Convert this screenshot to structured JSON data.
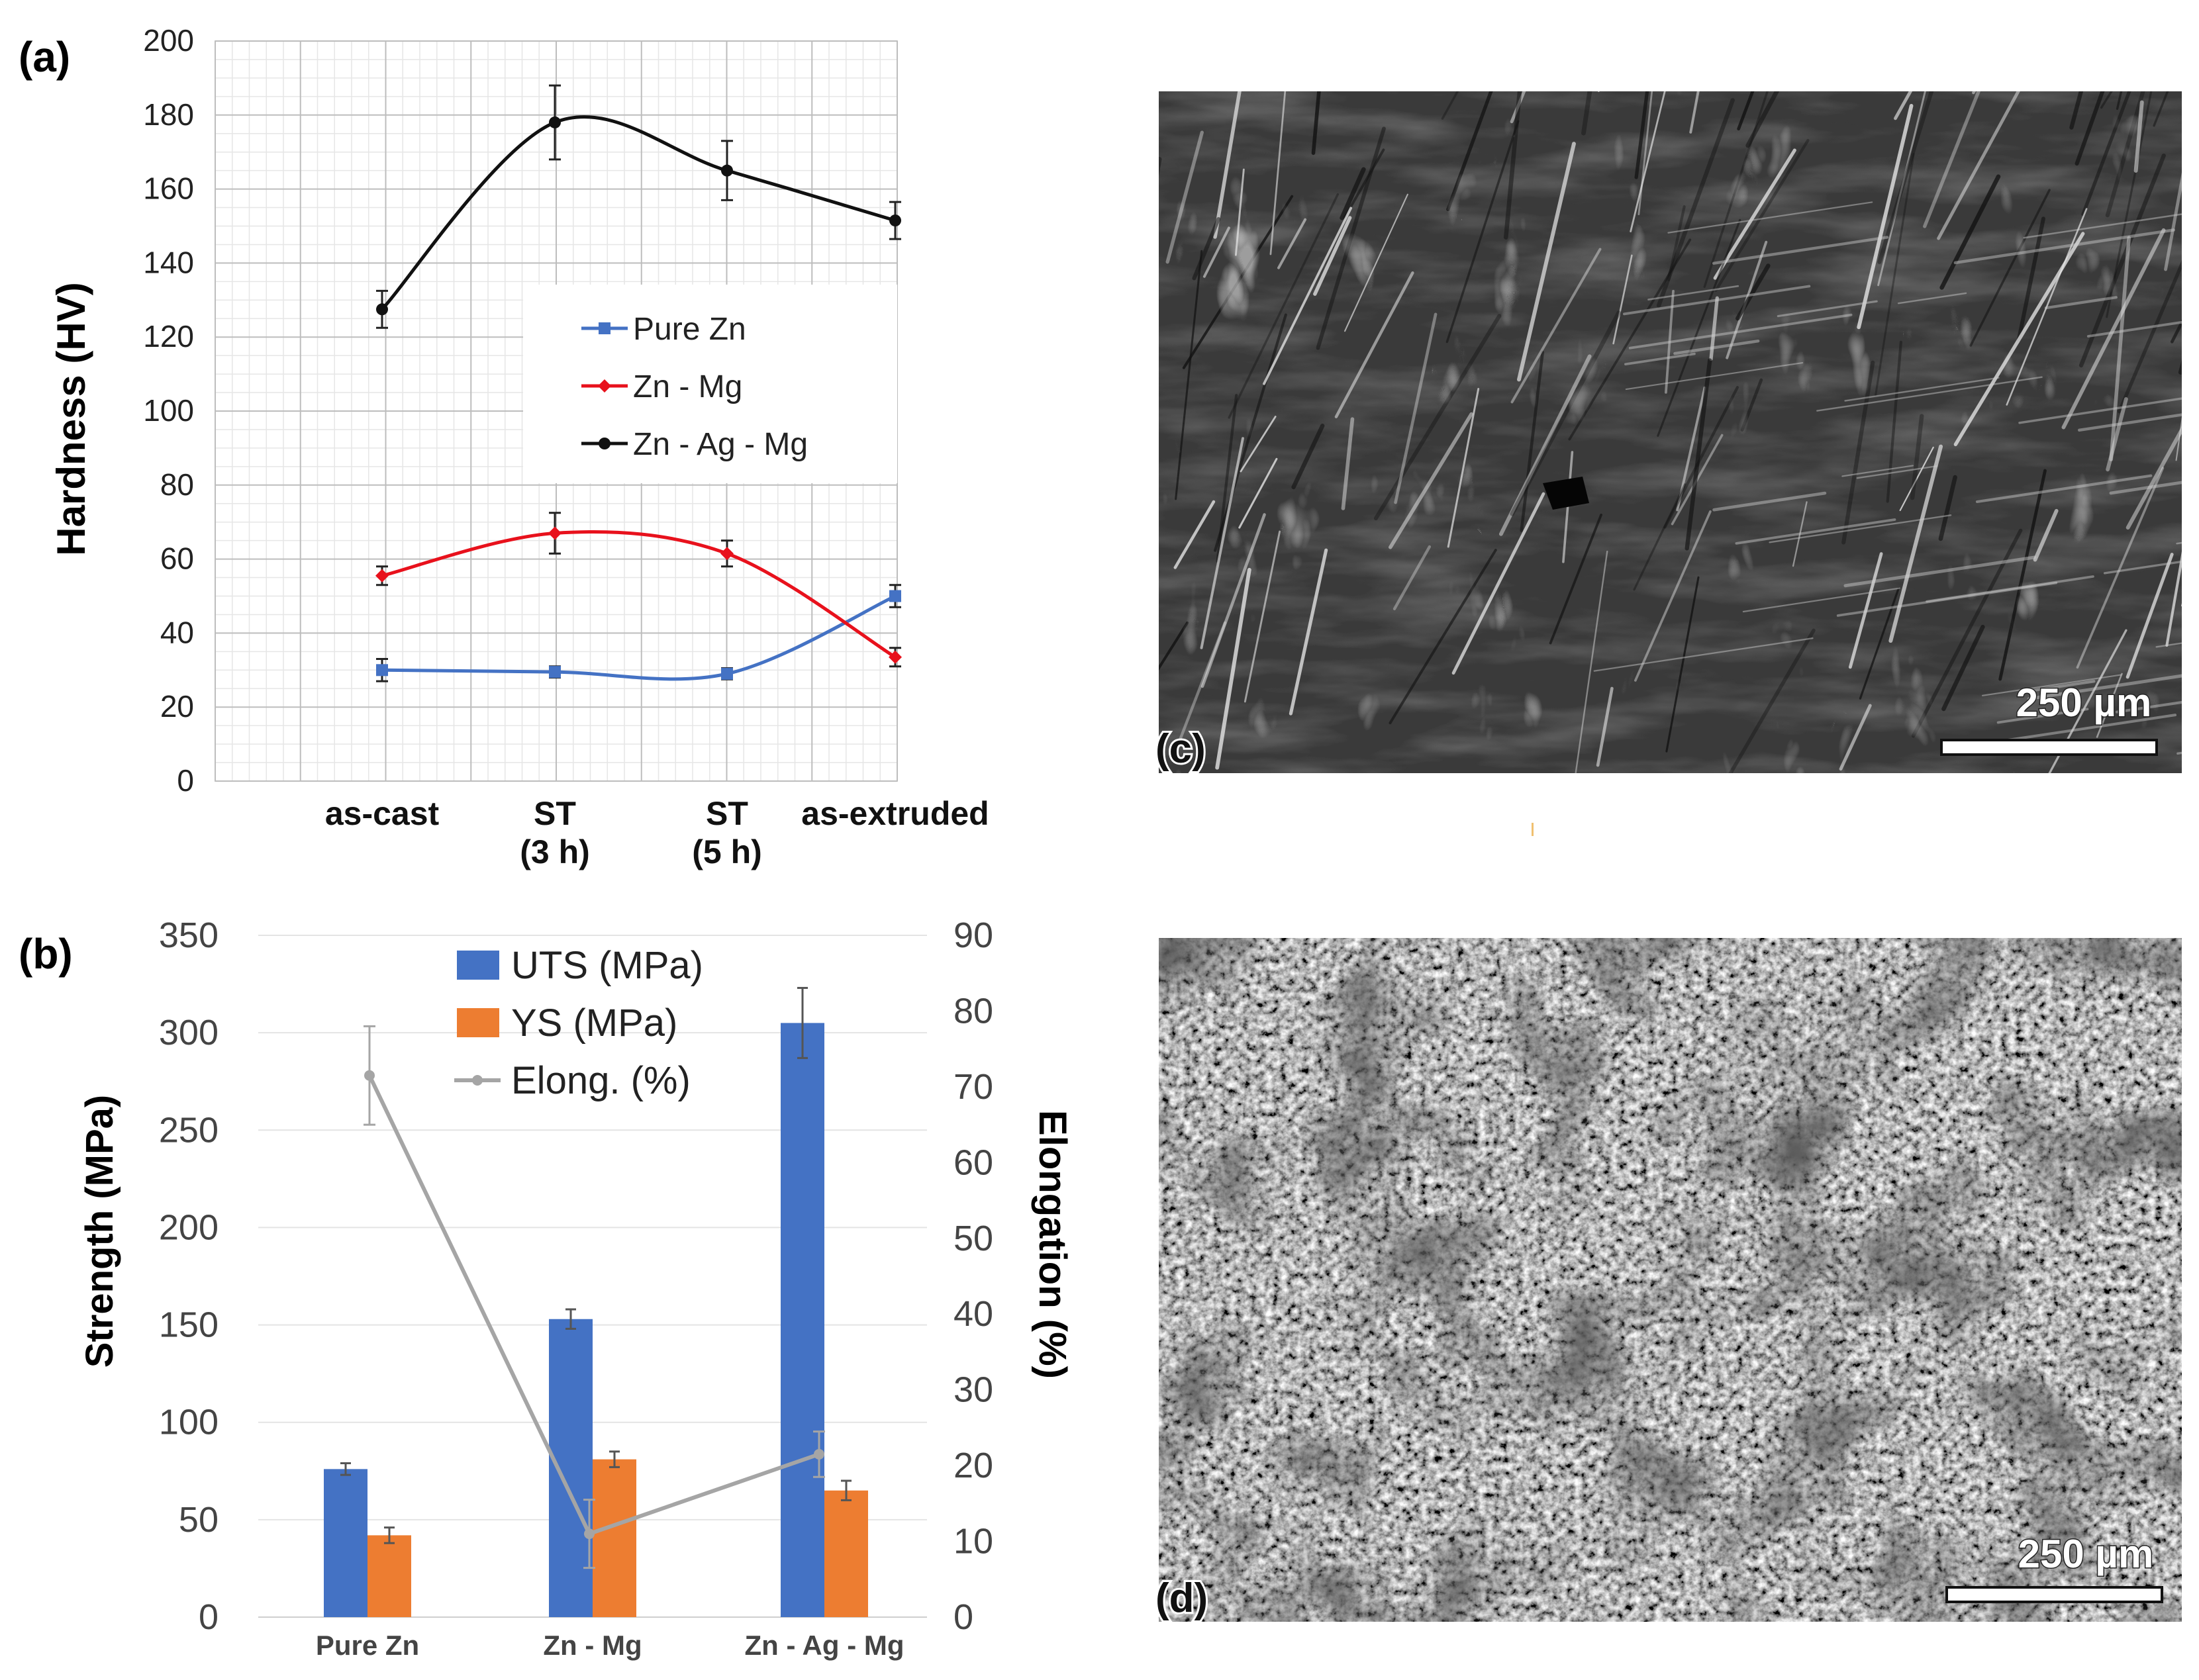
{
  "chart_data": [
    {
      "panel": "(a)",
      "type": "line",
      "categories": [
        "as-cast",
        "ST (3 h)",
        "ST (5 h)",
        "as-extruded"
      ],
      "category_lines": [
        [
          "as-cast"
        ],
        [
          "ST",
          "(3 h)"
        ],
        [
          "ST",
          "(5 h)"
        ],
        [
          "as-extruded"
        ]
      ],
      "ylabel": "Hardness (HV)",
      "ylim": [
        0,
        200
      ],
      "yticks": [
        0,
        20,
        40,
        60,
        80,
        100,
        120,
        140,
        160,
        180,
        200
      ],
      "grid": true,
      "legend_position": "center-right",
      "series": [
        {
          "name": "Pure Zn",
          "color": "#4472c4",
          "marker": "square",
          "values": [
            30,
            29.5,
            29,
            50
          ],
          "errors": [
            3,
            1.5,
            1.5,
            3
          ]
        },
        {
          "name": "Zn - Mg",
          "color": "#e8111c",
          "marker": "diamond",
          "values": [
            55.5,
            67,
            61.5,
            33.5
          ],
          "errors": [
            2.5,
            5.5,
            3.5,
            2.5
          ]
        },
        {
          "name": "Zn - Ag - Mg",
          "color": "#111111",
          "marker": "circle",
          "values": [
            127.5,
            178,
            165,
            151.5
          ],
          "errors": [
            5,
            10,
            8,
            5
          ]
        }
      ]
    },
    {
      "panel": "(b)",
      "type": "bar",
      "categories": [
        "Pure Zn",
        "Zn - Mg",
        "Zn - Ag - Mg"
      ],
      "ylabel": "Strength (MPa)",
      "ylim": [
        0,
        350
      ],
      "yticks": [
        0,
        50,
        100,
        150,
        200,
        250,
        300,
        350
      ],
      "y2label": "Elongation (%)",
      "y2lim": [
        0,
        90
      ],
      "y2ticks": [
        0,
        10,
        20,
        30,
        40,
        50,
        60,
        70,
        80,
        90
      ],
      "grid": true,
      "legend_position": "top-center",
      "series": [
        {
          "name": "UTS (MPa)",
          "color": "#4472c4",
          "kind": "bar",
          "axis": "left",
          "values": [
            76,
            153,
            305
          ],
          "errors": [
            3,
            5,
            18
          ]
        },
        {
          "name": "YS (MPa)",
          "color": "#ed7d31",
          "kind": "bar",
          "axis": "left",
          "values": [
            42,
            81,
            65
          ],
          "errors": [
            4,
            4,
            5
          ]
        },
        {
          "name": "Elong. (%)",
          "color": "#a5a5a5",
          "kind": "line",
          "axis": "right",
          "values": [
            71.5,
            11,
            21.5
          ],
          "errors": [
            6.5,
            4.5,
            3
          ]
        }
      ]
    }
  ],
  "micrographs": [
    {
      "panel": "(c)",
      "scale_label": "250 µm",
      "texture": "cleavage-facets"
    },
    {
      "panel": "(d)",
      "scale_label": "250 µm",
      "texture": "dimpled-ductile"
    }
  ]
}
